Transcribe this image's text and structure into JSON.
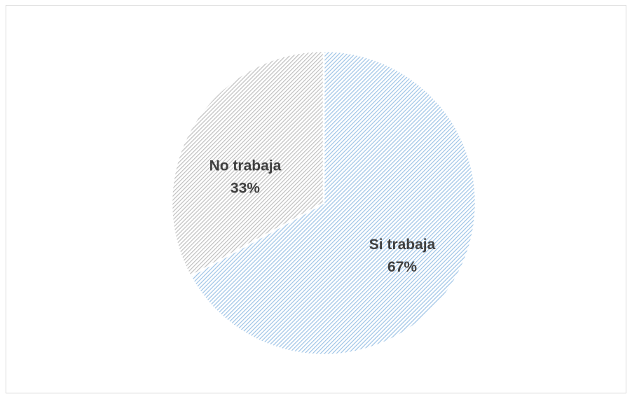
{
  "chart_data": {
    "type": "pie",
    "categories": [
      "Si trabaja",
      "No trabaja"
    ],
    "values": [
      67,
      33
    ],
    "value_labels": [
      "67%",
      "33%"
    ],
    "colors": [
      "#9dc3e6",
      "#bfbfbf"
    ]
  }
}
